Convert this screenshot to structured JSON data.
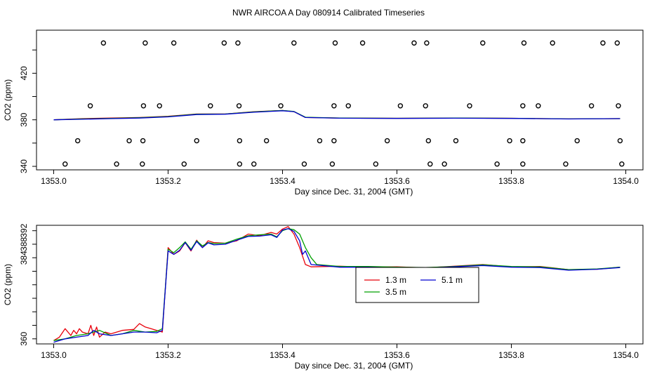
{
  "title": "NWR AIRCOA A  Day 080914  Calibrated Timeseries",
  "colors": {
    "red": "#e8000b",
    "green": "#00a000",
    "blue": "#0000d0",
    "axis": "#000000"
  },
  "chart_data": [
    {
      "type": "scatter",
      "xlabel": "Day since Dec. 31, 2004 (GMT)",
      "ylabel": "CO2 (ppm)",
      "xlim": [
        1352.97,
        1354.03
      ],
      "ylim": [
        337,
        457
      ],
      "xticks": [
        1353.0,
        1353.2,
        1353.4,
        1353.6,
        1353.8,
        1354.0
      ],
      "xtick_labels": [
        "1353.0",
        "1353.2",
        "1353.4",
        "1353.6",
        "1353.8",
        "1354.0"
      ],
      "yticks": [
        340,
        380,
        420
      ],
      "ytick_labels": [
        "340",
        "380",
        "420"
      ],
      "yminor_ticks": [
        360,
        400,
        440
      ],
      "calibration_points": [
        {
          "x": 1353.087,
          "y": 446
        },
        {
          "x": 1353.16,
          "y": 446
        },
        {
          "x": 1353.21,
          "y": 446
        },
        {
          "x": 1353.298,
          "y": 446
        },
        {
          "x": 1353.322,
          "y": 446
        },
        {
          "x": 1353.42,
          "y": 446
        },
        {
          "x": 1353.492,
          "y": 446
        },
        {
          "x": 1353.54,
          "y": 446
        },
        {
          "x": 1353.63,
          "y": 446
        },
        {
          "x": 1353.652,
          "y": 446
        },
        {
          "x": 1353.75,
          "y": 446
        },
        {
          "x": 1353.822,
          "y": 446
        },
        {
          "x": 1353.872,
          "y": 446
        },
        {
          "x": 1353.96,
          "y": 446
        },
        {
          "x": 1353.985,
          "y": 446
        },
        {
          "x": 1353.064,
          "y": 392
        },
        {
          "x": 1353.157,
          "y": 392
        },
        {
          "x": 1353.185,
          "y": 392
        },
        {
          "x": 1353.274,
          "y": 392
        },
        {
          "x": 1353.324,
          "y": 392
        },
        {
          "x": 1353.397,
          "y": 392
        },
        {
          "x": 1353.49,
          "y": 392
        },
        {
          "x": 1353.515,
          "y": 392
        },
        {
          "x": 1353.606,
          "y": 392
        },
        {
          "x": 1353.65,
          "y": 392
        },
        {
          "x": 1353.727,
          "y": 392
        },
        {
          "x": 1353.82,
          "y": 392
        },
        {
          "x": 1353.847,
          "y": 392
        },
        {
          "x": 1353.94,
          "y": 392
        },
        {
          "x": 1353.987,
          "y": 392
        },
        {
          "x": 1353.042,
          "y": 362
        },
        {
          "x": 1353.132,
          "y": 362
        },
        {
          "x": 1353.156,
          "y": 362
        },
        {
          "x": 1353.25,
          "y": 362
        },
        {
          "x": 1353.325,
          "y": 362
        },
        {
          "x": 1353.372,
          "y": 362
        },
        {
          "x": 1353.465,
          "y": 362
        },
        {
          "x": 1353.49,
          "y": 362
        },
        {
          "x": 1353.583,
          "y": 362
        },
        {
          "x": 1353.655,
          "y": 362
        },
        {
          "x": 1353.703,
          "y": 362
        },
        {
          "x": 1353.797,
          "y": 362
        },
        {
          "x": 1353.82,
          "y": 362
        },
        {
          "x": 1353.915,
          "y": 362
        },
        {
          "x": 1353.99,
          "y": 362
        },
        {
          "x": 1353.02,
          "y": 342
        },
        {
          "x": 1353.11,
          "y": 342
        },
        {
          "x": 1353.155,
          "y": 342
        },
        {
          "x": 1353.228,
          "y": 342
        },
        {
          "x": 1353.325,
          "y": 342
        },
        {
          "x": 1353.35,
          "y": 342
        },
        {
          "x": 1353.438,
          "y": 342
        },
        {
          "x": 1353.487,
          "y": 342
        },
        {
          "x": 1353.563,
          "y": 342
        },
        {
          "x": 1353.658,
          "y": 342
        },
        {
          "x": 1353.683,
          "y": 342
        },
        {
          "x": 1353.775,
          "y": 342
        },
        {
          "x": 1353.82,
          "y": 342
        },
        {
          "x": 1353.895,
          "y": 342
        },
        {
          "x": 1353.993,
          "y": 342
        }
      ],
      "series": [
        {
          "name": "1.3 m",
          "color": "#e8000b",
          "x": [
            1353.0,
            1353.05,
            1353.1,
            1353.15,
            1353.2,
            1353.25,
            1353.3,
            1353.35,
            1353.4,
            1353.42,
            1353.44,
            1353.5,
            1353.6,
            1353.7,
            1353.8,
            1353.9,
            1353.99
          ],
          "values": [
            380,
            381,
            381.5,
            382,
            383,
            385,
            385,
            387,
            388,
            387,
            382,
            381.5,
            381.3,
            381.5,
            381.3,
            380.8,
            381
          ]
        },
        {
          "name": "3.5 m",
          "color": "#00a000",
          "x": [
            1353.0,
            1353.05,
            1353.1,
            1353.15,
            1353.2,
            1353.25,
            1353.3,
            1353.35,
            1353.4,
            1353.42,
            1353.44,
            1353.5,
            1353.6,
            1353.7,
            1353.8,
            1353.9,
            1353.99
          ],
          "values": [
            380,
            380.8,
            381.2,
            381.8,
            382.8,
            384.8,
            385,
            386.8,
            388,
            387.2,
            382.2,
            381.5,
            381.3,
            381.5,
            381.3,
            380.8,
            381
          ]
        },
        {
          "name": "5.1 m",
          "color": "#0000d0",
          "x": [
            1353.0,
            1353.05,
            1353.1,
            1353.15,
            1353.2,
            1353.25,
            1353.3,
            1353.35,
            1353.4,
            1353.42,
            1353.44,
            1353.5,
            1353.6,
            1353.7,
            1353.8,
            1353.9,
            1353.99
          ],
          "values": [
            380,
            380.5,
            381,
            381.5,
            382.5,
            384.5,
            384.8,
            386.5,
            387.8,
            387,
            382,
            381.4,
            381.2,
            381.4,
            381.2,
            380.7,
            381
          ]
        }
      ]
    },
    {
      "type": "line",
      "xlabel": "Day since Dec. 31, 2004 (GMT)",
      "ylabel": "CO2 (ppm)",
      "xlim": [
        1352.97,
        1354.03
      ],
      "ylim": [
        358.5,
        393.6
      ],
      "xticks": [
        1353.0,
        1353.2,
        1353.4,
        1353.6,
        1353.8,
        1354.0
      ],
      "xtick_labels": [
        "1353.0",
        "1353.2",
        "1353.4",
        "1353.6",
        "1353.8",
        "1354.0"
      ],
      "yticks": [
        360,
        364,
        368,
        372,
        376,
        380,
        384,
        388,
        392
      ],
      "ytick_labels": [
        "360",
        "",
        "",
        "",
        "",
        "",
        "384",
        "388",
        "392"
      ],
      "label_ticks": [
        360,
        384,
        388,
        392
      ],
      "legend": {
        "position": "center-right",
        "entries": [
          "1.3 m",
          "3.5 m",
          "5.1 m"
        ]
      },
      "series": [
        {
          "name": "1.3 m",
          "color": "#e8000b",
          "x": [
            1353.0,
            1353.01,
            1353.02,
            1353.03,
            1353.035,
            1353.04,
            1353.045,
            1353.05,
            1353.06,
            1353.065,
            1353.07,
            1353.075,
            1353.08,
            1353.09,
            1353.1,
            1353.12,
            1353.14,
            1353.15,
            1353.16,
            1353.17,
            1353.18,
            1353.19,
            1353.2,
            1353.21,
            1353.22,
            1353.23,
            1353.24,
            1353.25,
            1353.26,
            1353.27,
            1353.28,
            1353.3,
            1353.32,
            1353.33,
            1353.34,
            1353.36,
            1353.38,
            1353.39,
            1353.4,
            1353.41,
            1353.42,
            1353.43,
            1353.44,
            1353.45,
            1353.5,
            1353.55,
            1353.6,
            1353.65,
            1353.7,
            1353.75,
            1353.8,
            1353.85,
            1353.9,
            1353.95,
            1353.99
          ],
          "values": [
            359.5,
            360.5,
            363,
            361,
            362.5,
            361.5,
            363,
            362,
            361.5,
            364,
            361,
            363.5,
            360.5,
            362,
            361.5,
            362.5,
            362.8,
            364.5,
            363.5,
            363,
            362.5,
            362,
            387,
            385,
            386,
            388.5,
            386,
            389.2,
            387,
            389,
            388.5,
            388.3,
            389,
            390,
            391,
            390.5,
            391.5,
            391,
            392.5,
            393.2,
            391,
            387,
            382,
            381.3,
            381.5,
            381.2,
            381.3,
            381.0,
            381.5,
            382,
            381.3,
            381.4,
            380.5,
            380.6,
            381.2
          ]
        },
        {
          "name": "3.5 m",
          "color": "#00a000",
          "x": [
            1353.0,
            1353.02,
            1353.04,
            1353.06,
            1353.07,
            1353.08,
            1353.1,
            1353.12,
            1353.14,
            1353.16,
            1353.18,
            1353.19,
            1353.2,
            1353.21,
            1353.22,
            1353.23,
            1353.24,
            1353.25,
            1353.26,
            1353.27,
            1353.28,
            1353.3,
            1353.32,
            1353.34,
            1353.36,
            1353.38,
            1353.39,
            1353.4,
            1353.41,
            1353.42,
            1353.43,
            1353.44,
            1353.45,
            1353.46,
            1353.5,
            1353.55,
            1353.6,
            1353.65,
            1353.7,
            1353.75,
            1353.8,
            1353.85,
            1353.9,
            1353.95,
            1353.99
          ],
          "values": [
            359.5,
            360,
            361,
            361.5,
            362,
            362.5,
            361,
            361.5,
            362.5,
            362,
            362.2,
            363,
            386.5,
            385.5,
            387,
            388.7,
            386.5,
            389,
            387.5,
            388.5,
            388.2,
            388.3,
            389.5,
            390.5,
            390.8,
            391,
            390.2,
            392,
            392.6,
            392.3,
            391,
            387,
            384,
            382,
            381.4,
            381.4,
            381.2,
            381.1,
            381.4,
            381.9,
            381.4,
            381.3,
            380.5,
            380.7,
            381.2
          ]
        },
        {
          "name": "5.1 m",
          "color": "#0000d0",
          "x": [
            1353.0,
            1353.02,
            1353.04,
            1353.06,
            1353.07,
            1353.08,
            1353.1,
            1353.12,
            1353.14,
            1353.16,
            1353.18,
            1353.19,
            1353.2,
            1353.21,
            1353.22,
            1353.23,
            1353.24,
            1353.25,
            1353.26,
            1353.27,
            1353.28,
            1353.3,
            1353.32,
            1353.34,
            1353.36,
            1353.38,
            1353.39,
            1353.4,
            1353.41,
            1353.42,
            1353.43,
            1353.435,
            1353.44,
            1353.45,
            1353.5,
            1353.55,
            1353.6,
            1353.65,
            1353.7,
            1353.75,
            1353.8,
            1353.85,
            1353.9,
            1353.95,
            1353.99
          ],
          "values": [
            359,
            360,
            360.5,
            361,
            362.5,
            361.5,
            361,
            361.5,
            362,
            362,
            361.8,
            362.5,
            386,
            385,
            386.2,
            388.5,
            386.2,
            388.8,
            387,
            388.4,
            387.8,
            388,
            389.2,
            390.3,
            390.4,
            390.8,
            390,
            392.2,
            392.6,
            391.8,
            389,
            385,
            386,
            382,
            381.2,
            381.2,
            381.0,
            381.0,
            381.3,
            381.7,
            381.2,
            381.1,
            380.3,
            380.6,
            381.1
          ]
        }
      ]
    }
  ]
}
